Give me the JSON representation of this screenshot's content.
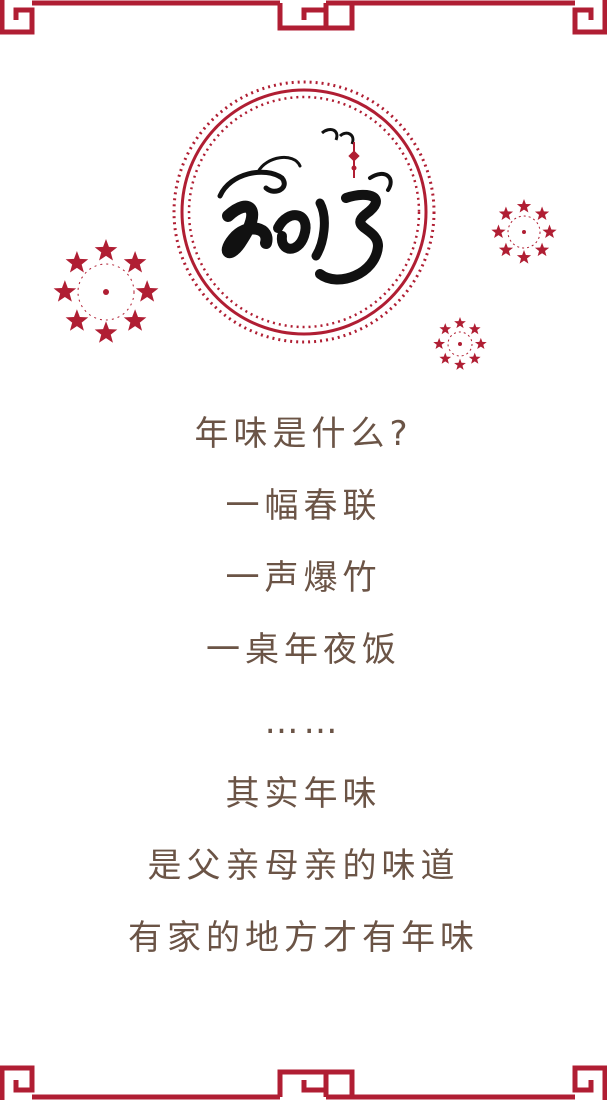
{
  "colors": {
    "accent": "#b01e33",
    "text": "#6b5446",
    "ink": "#111111"
  },
  "decorations": {
    "top_border": "chinese-fret-border",
    "bottom_border": "chinese-fret-border",
    "emblem": "calligraphy-2015-year-emblem",
    "flowers": [
      "red-star-flower",
      "red-star-flower",
      "red-star-flower"
    ]
  },
  "poem": {
    "lines": [
      "年味是什么?",
      "一幅春联",
      "一声爆竹",
      "一桌年夜饭",
      "……",
      "其实年味",
      "是父亲母亲的味道",
      "有家的地方才有年味"
    ]
  }
}
